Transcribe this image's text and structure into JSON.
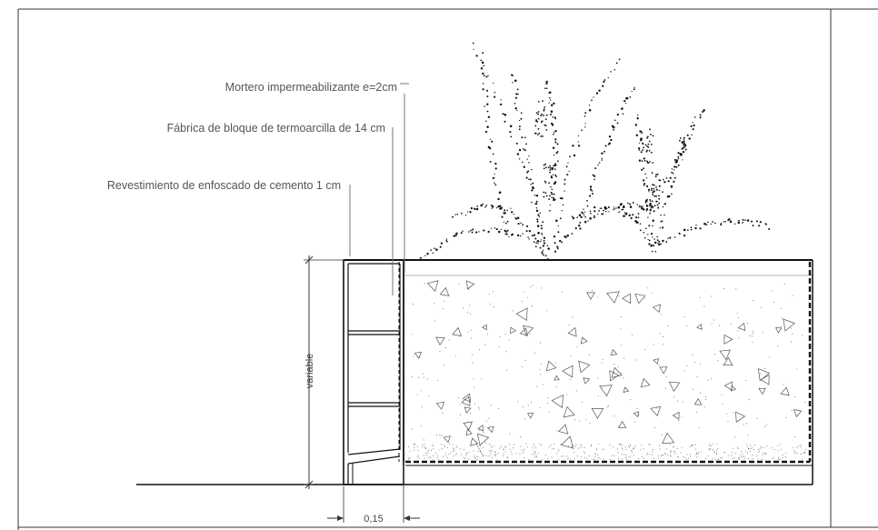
{
  "labels": {
    "mortar": "Mortero impermeabilizante e=2cm",
    "block": "Fábrica de bloque de termoarcilla de 14 cm",
    "render": "Revestimiento de enfoscado de cemento 1 cm"
  },
  "dimensions": {
    "height": "variable",
    "width": "0,15"
  },
  "icons": {
    "plant": "plant-sketch-icon",
    "aggregate": "gravel-triangles"
  }
}
